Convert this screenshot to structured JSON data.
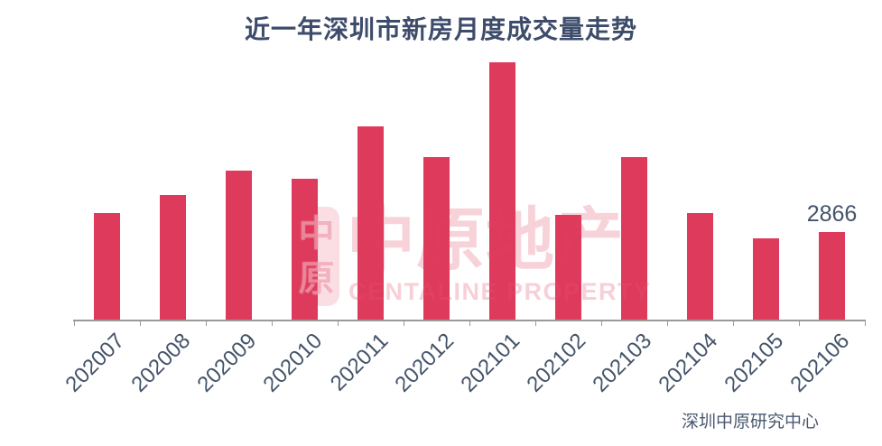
{
  "title": "近一年深圳市新房月度成交量走势",
  "source_label": "深圳中原研究中心",
  "watermark": {
    "seal_char_top": "中",
    "seal_char_bottom": "原",
    "brand_cn": "中原地产",
    "brand_en": "CENTALINE PROPERTY"
  },
  "colors": {
    "bar": "#DE3A5C",
    "title_text": "#3E4C6B",
    "axis_label_text": "#44546A",
    "axis_line": "#9A9A9A",
    "watermark_pink": "#F6C3CF",
    "source_text": "#4A5870"
  },
  "chart_data": {
    "type": "bar",
    "title": "近一年深圳市新房月度成交量走势",
    "categories": [
      "202007",
      "202008",
      "202009",
      "202010",
      "202011",
      "202012",
      "202101",
      "202102",
      "202103",
      "202104",
      "202105",
      "202106"
    ],
    "values": [
      3500,
      4100,
      4890,
      4630,
      6340,
      5340,
      8440,
      3440,
      5340,
      3500,
      2670,
      2866
    ],
    "values_note": "Only 202106 carries a printed data label (2866); other values estimated from bar heights.",
    "shown_data_labels": [
      {
        "category": "202106",
        "text": "2866"
      }
    ],
    "xlabel": "",
    "ylabel": "",
    "ylim": [
      0,
      10500
    ],
    "grid": false,
    "y_axis_visible": false,
    "legend": false,
    "bar_color": "#DE3A5C"
  }
}
